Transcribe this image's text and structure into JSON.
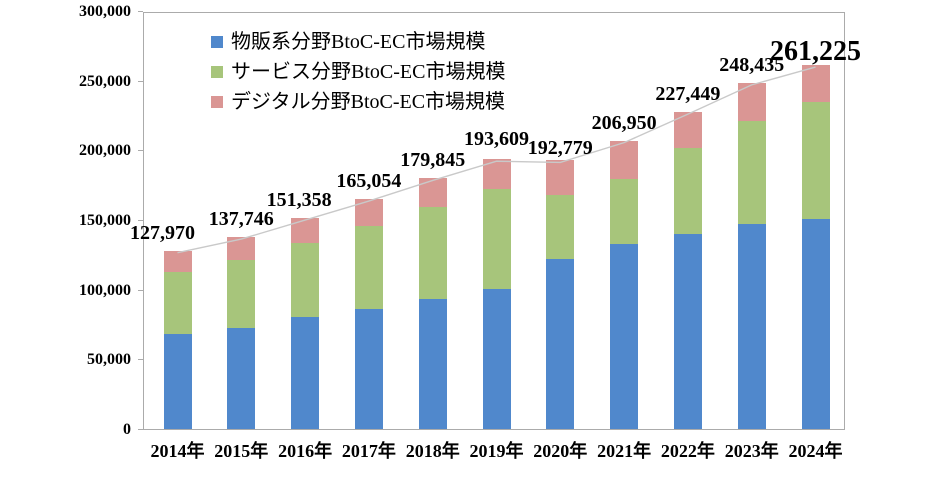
{
  "chart_data": {
    "type": "bar",
    "subtype": "stacked-bars-with-total-line",
    "x": [
      "2014年",
      "2015年",
      "2016年",
      "2017年",
      "2018年",
      "2019年",
      "2020年",
      "2021年",
      "2022年",
      "2023年",
      "2024年"
    ],
    "series": [
      {
        "name": "物販系分野BtoC-EC市場規模",
        "color": "#5088CC",
        "values": [
          68043,
          72398,
          80043,
          86008,
          92992,
          100515,
          122333,
          132865,
          139997,
          147236,
          150936
        ]
      },
      {
        "name": "サービス分野BtoC-EC市場規模",
        "color": "#A7C57B",
        "values": [
          44816,
          49014,
          53532,
          59568,
          66471,
          71672,
          45832,
          46424,
          61477,
          74169,
          84114
        ]
      },
      {
        "name": "デジタル分野BtoC-EC市場規模",
        "color": "#DA9694",
        "values": [
          15111,
          16334,
          17782,
          19478,
          20382,
          21422,
          24614,
          27661,
          25974,
          27030,
          26175
        ]
      }
    ],
    "totals": [
      127970,
      137746,
      151358,
      165054,
      179845,
      193609,
      192779,
      206950,
      227449,
      248435,
      261225
    ],
    "total_labels": [
      "127,970",
      "137,746",
      "151,358",
      "165,054",
      "179,845",
      "193,609",
      "192,779",
      "206,950",
      "227,449",
      "248,435",
      "261,225"
    ],
    "emphasized_label_index": 10,
    "ylim": [
      0,
      300000
    ],
    "ytick_step": 50000,
    "ytick_labels": [
      "0",
      "50,000",
      "100,000",
      "150,000",
      "200,000",
      "250,000",
      "300,000"
    ],
    "grid": false,
    "legend_position": "top-left-inside",
    "line_color": "#c9c9c9",
    "border_color": "#ababab",
    "title": "",
    "xlabel": "",
    "ylabel": ""
  }
}
